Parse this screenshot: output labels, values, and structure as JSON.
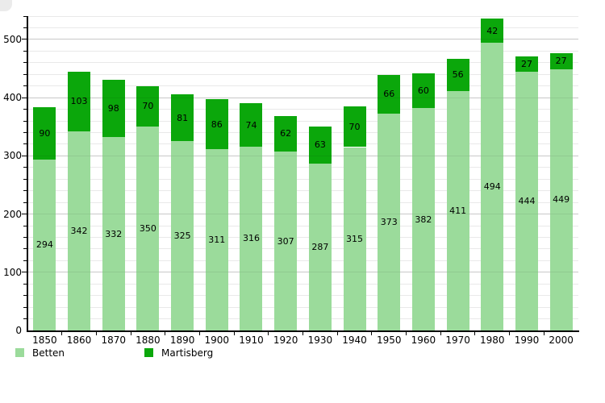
{
  "page": {
    "background": "#ffffff"
  },
  "chart_data": {
    "type": "bar",
    "stacked": true,
    "title": "",
    "xlabel": "",
    "ylabel": "",
    "categories": [
      "1850",
      "1860",
      "1870",
      "1880",
      "1890",
      "1900",
      "1910",
      "1920",
      "1930",
      "1940",
      "1950",
      "1960",
      "1970",
      "1980",
      "1990",
      "2000"
    ],
    "series": [
      {
        "name": "Betten",
        "color": "#9bdb9b",
        "values": [
          294,
          342,
          332,
          350,
          325,
          311,
          316,
          307,
          287,
          315,
          373,
          382,
          411,
          494,
          444,
          449
        ]
      },
      {
        "name": "Martisberg",
        "color": "#0ba70b",
        "values": [
          90,
          103,
          98,
          70,
          81,
          86,
          74,
          62,
          63,
          70,
          66,
          60,
          56,
          42,
          27,
          27
        ]
      }
    ],
    "ylim": [
      0,
      540
    ],
    "y_ticks": [
      0,
      100,
      200,
      300,
      400,
      500
    ],
    "minor_grid_step": 20,
    "grid": true,
    "value_labels": "inside-middle",
    "legend_position": "bottom-left"
  },
  "legend": {
    "items": [
      {
        "label": "Betten",
        "color": "#9bdb9b"
      },
      {
        "label": "Martisberg",
        "color": "#0ba70b"
      }
    ]
  }
}
